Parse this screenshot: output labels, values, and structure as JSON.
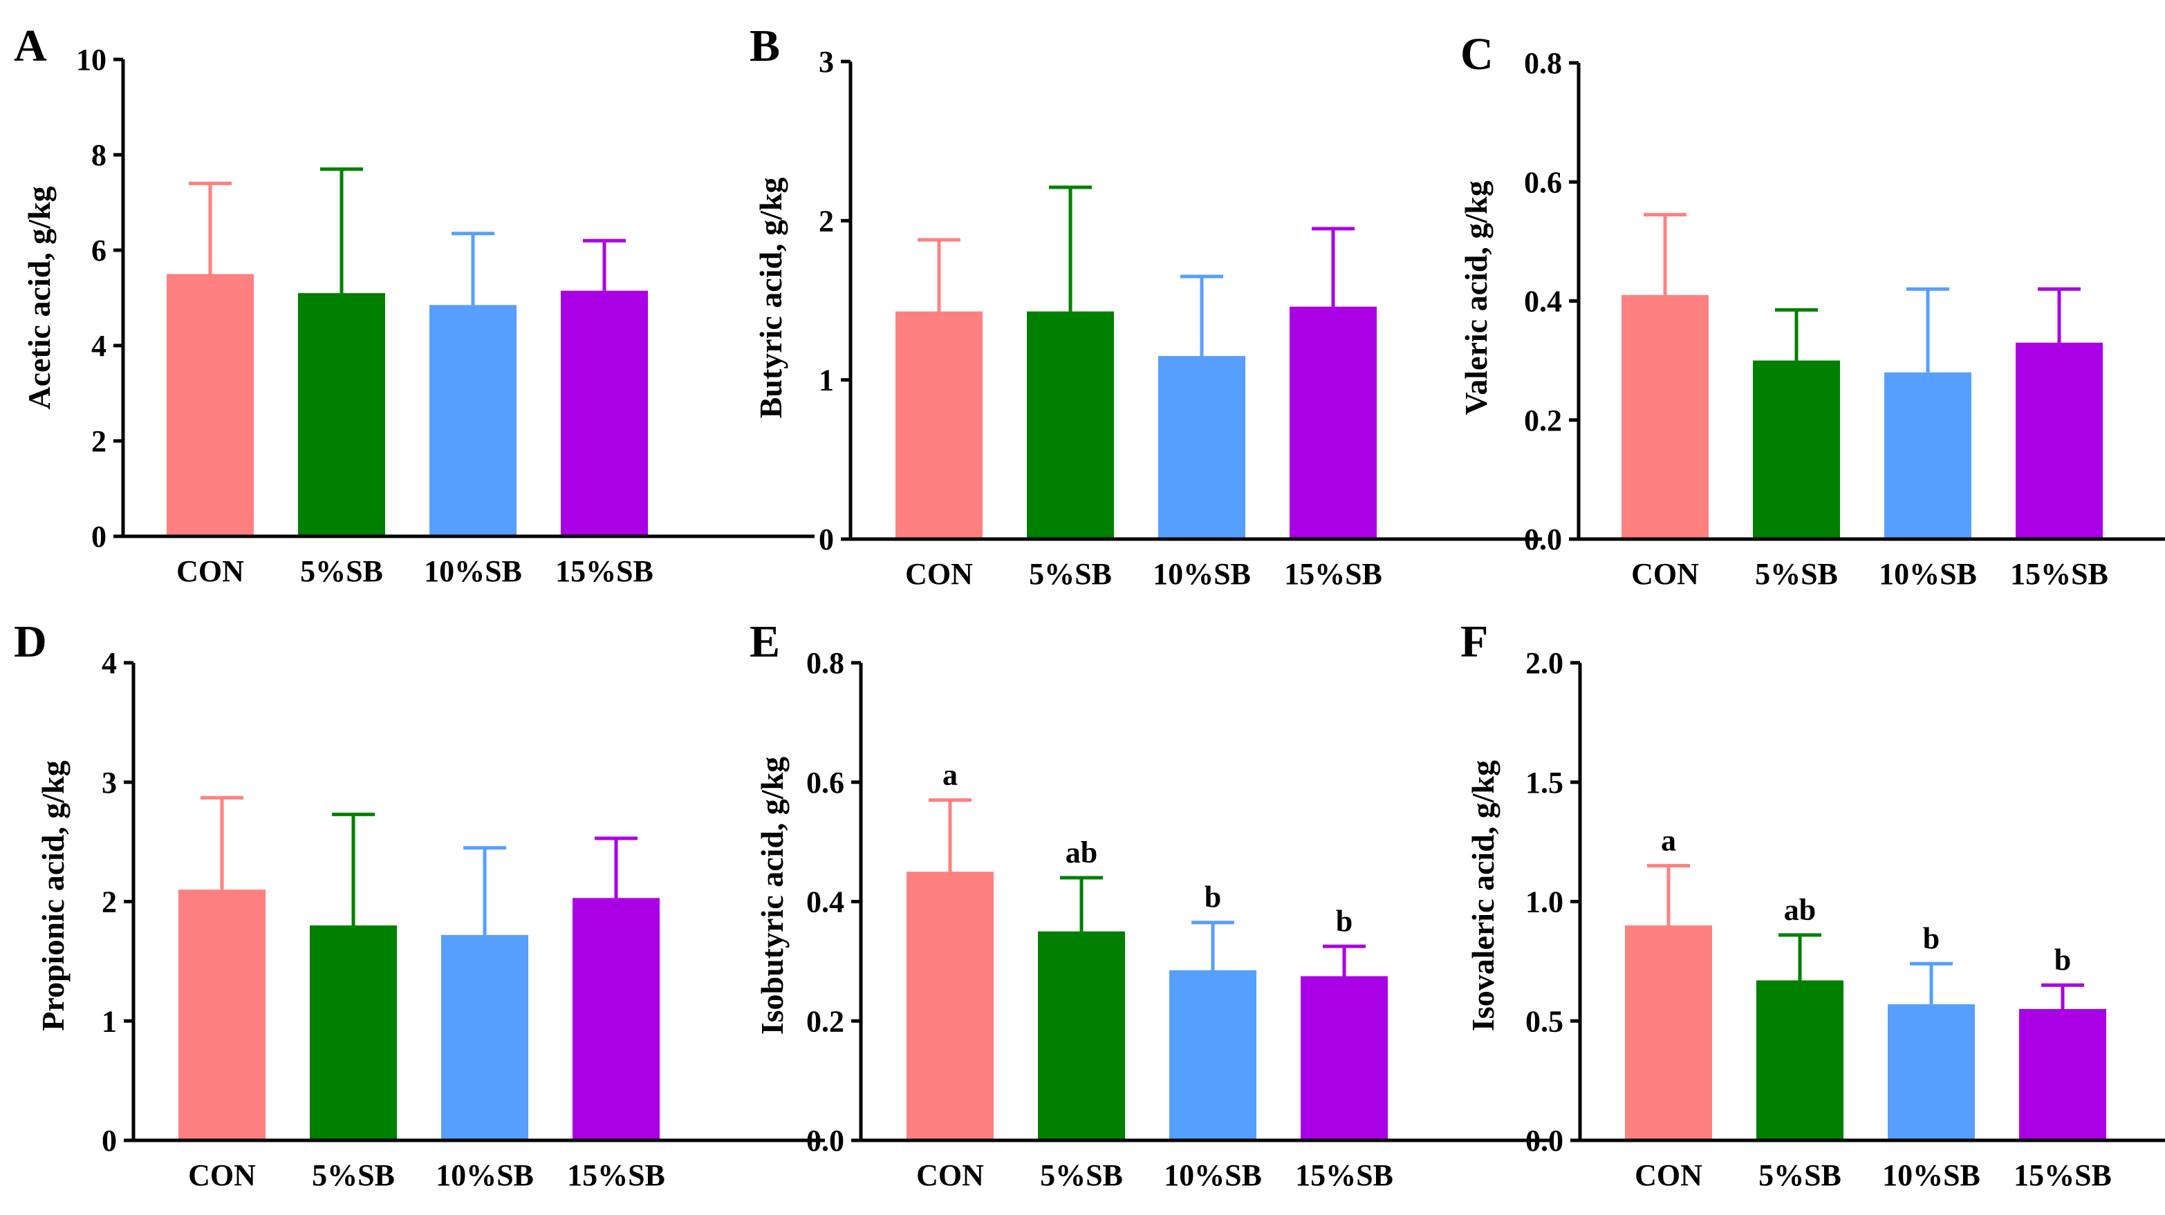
{
  "colors": {
    "CON": "#FF8080",
    "5%SB": "#008000",
    "10%SB": "#569FFF",
    "15%SB": "#AA00E6"
  },
  "chart_data": [
    {
      "panel": "A",
      "type": "bar",
      "categories": [
        "CON",
        "5%SB",
        "10%SB",
        "15%SB"
      ],
      "values": [
        5.5,
        5.1,
        4.85,
        5.15
      ],
      "errors": [
        1.9,
        2.6,
        1.5,
        1.05
      ],
      "significance": [],
      "ylabel": "Acetic acid, g/kg",
      "ylim": [
        0,
        10
      ],
      "yticks": [
        "0",
        "2",
        "4",
        "6",
        "8",
        "10"
      ]
    },
    {
      "panel": "B",
      "type": "bar",
      "categories": [
        "CON",
        "5%SB",
        "10%SB",
        "15%SB"
      ],
      "values": [
        1.43,
        1.43,
        1.15,
        1.46
      ],
      "errors": [
        0.45,
        0.78,
        0.5,
        0.49
      ],
      "significance": [],
      "ylabel": "Butyric acid, g/kg",
      "ylim": [
        0,
        3
      ],
      "yticks": [
        "0",
        "1",
        "2",
        "3"
      ]
    },
    {
      "panel": "C",
      "type": "bar",
      "categories": [
        "CON",
        "5%SB",
        "10%SB",
        "15%SB"
      ],
      "values": [
        0.41,
        0.3,
        0.28,
        0.33
      ],
      "errors": [
        0.135,
        0.085,
        0.14,
        0.09
      ],
      "significance": [],
      "ylabel": "Valeric acid, g/kg",
      "ylim": [
        0,
        0.8
      ],
      "yticks": [
        "0.0",
        "0.2",
        "0.4",
        "0.6",
        "0.8"
      ]
    },
    {
      "panel": "D",
      "type": "bar",
      "categories": [
        "CON",
        "5%SB",
        "10%SB",
        "15%SB"
      ],
      "values": [
        2.1,
        1.8,
        1.72,
        2.03
      ],
      "errors": [
        0.77,
        0.93,
        0.73,
        0.5
      ],
      "significance": [],
      "ylabel": "Propionic acid, g/kg",
      "ylim": [
        0,
        4
      ],
      "yticks": [
        "0",
        "1",
        "2",
        "3",
        "4"
      ]
    },
    {
      "panel": "E",
      "type": "bar",
      "categories": [
        "CON",
        "5%SB",
        "10%SB",
        "15%SB"
      ],
      "values": [
        0.45,
        0.35,
        0.285,
        0.275
      ],
      "errors": [
        0.12,
        0.09,
        0.08,
        0.05
      ],
      "significance": [
        "a",
        "ab",
        "b",
        "b"
      ],
      "ylabel": "Isobutyric acid, g/kg",
      "ylim": [
        0,
        0.8
      ],
      "yticks": [
        "0.0",
        "0.2",
        "0.4",
        "0.6",
        "0.8"
      ]
    },
    {
      "panel": "F",
      "type": "bar",
      "categories": [
        "CON",
        "5%SB",
        "10%SB",
        "15%SB"
      ],
      "values": [
        0.9,
        0.67,
        0.57,
        0.55
      ],
      "errors": [
        0.25,
        0.19,
        0.17,
        0.1
      ],
      "significance": [
        "a",
        "ab",
        "b",
        "b"
      ],
      "ylabel": "Isovaleric acid, g/kg",
      "ylim": [
        0,
        2.0
      ],
      "yticks": [
        "0.0",
        "0.5",
        "1.0",
        "1.5",
        "2.0"
      ]
    }
  ]
}
